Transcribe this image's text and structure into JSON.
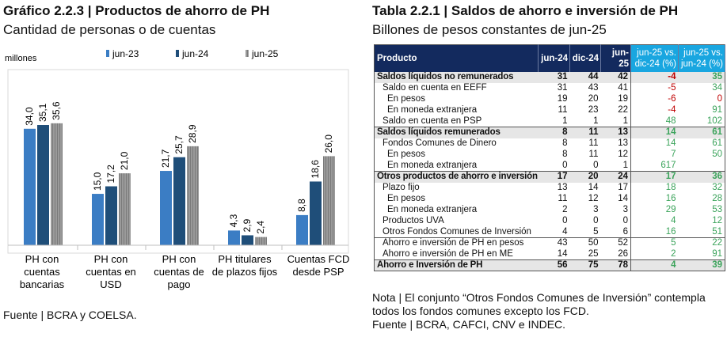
{
  "left": {
    "title": "Gráfico 2.2.3 | Productos de ahorro de PH",
    "subtitle": "Cantidad de personas o de cuentas",
    "source": "Fuente | BCRA y COELSA."
  },
  "chart_data": {
    "type": "bar",
    "ylabel": "millones",
    "ylim": [
      0,
      40
    ],
    "grid": false,
    "legend_position": "top",
    "categories": [
      "PH con cuentas bancarias",
      "PH con cuentas en USD",
      "PH con cuentas de pago",
      "PH titulares de plazos fijos",
      "Cuentas FCD desde PSP"
    ],
    "series": [
      {
        "name": "jun-23",
        "color": "#3b7dc4",
        "values": [
          34.0,
          15.0,
          21.7,
          4.3,
          8.8
        ]
      },
      {
        "name": "jun-24",
        "color": "#1f4e79",
        "values": [
          35.1,
          17.2,
          25.7,
          2.9,
          18.6
        ]
      },
      {
        "name": "jun-25",
        "color": "#8c8c8c",
        "values": [
          35.6,
          21.0,
          28.9,
          2.4,
          26.0
        ]
      }
    ]
  },
  "right": {
    "title": "Tabla 2.2.1 | Saldos de ahorro e inversión de PH",
    "subtitle": "Billones de pesos constantes de jun-25",
    "note": "Nota | El conjunto “Otros Fondos Comunes de Inversión” contempla todos los fondos comunes excepto los FCD.",
    "source": "Fuente | BCRA, CAFCI, CNV e INDEC.",
    "headers": [
      "Producto",
      "jun-24",
      "dic-24",
      "jun-25",
      "jun-25 vs. dic-24 (%)",
      "jun-25 vs. jun-24 (%)"
    ],
    "rows": [
      [
        "Saldos líquidos no remunerados",
        "31",
        "44",
        "42",
        "-4",
        "35"
      ],
      [
        "Saldo en cuenta en EEFF",
        "31",
        "43",
        "41",
        "-5",
        "34"
      ],
      [
        "En pesos",
        "19",
        "20",
        "19",
        "-6",
        "0"
      ],
      [
        "En moneda extranjera",
        "11",
        "23",
        "22",
        "-4",
        "91"
      ],
      [
        "Saldo en cuenta en PSP",
        "1",
        "1",
        "1",
        "48",
        "102"
      ],
      [
        "Saldos líquidos remunerados",
        "8",
        "11",
        "13",
        "14",
        "61"
      ],
      [
        "Fondos Comunes de Dinero",
        "8",
        "11",
        "13",
        "14",
        "61"
      ],
      [
        "En pesos",
        "8",
        "11",
        "12",
        "7",
        "50"
      ],
      [
        "En moneda extranjera",
        "0",
        "0",
        "1",
        "617",
        ""
      ],
      [
        "Otros productos de ahorro e inversión",
        "17",
        "20",
        "24",
        "17",
        "36"
      ],
      [
        "Plazo fijo",
        "13",
        "14",
        "17",
        "18",
        "32"
      ],
      [
        "En pesos",
        "11",
        "12",
        "14",
        "16",
        "28"
      ],
      [
        "En moneda extranjera",
        "2",
        "3",
        "3",
        "29",
        "53"
      ],
      [
        "Productos UVA",
        "0",
        "0",
        "0",
        "4",
        "12"
      ],
      [
        "Otros Fondos Comunes de Inversión",
        "4",
        "5",
        "6",
        "16",
        "51"
      ],
      [
        "Ahorro e inversión de PH en pesos",
        "43",
        "50",
        "52",
        "5",
        "22"
      ],
      [
        "Ahorro e inversión de PH en ME",
        "14",
        "25",
        "26",
        "2",
        "91"
      ],
      [
        "Ahorro e Inversión de PH",
        "56",
        "75",
        "78",
        "4",
        "39"
      ]
    ]
  }
}
